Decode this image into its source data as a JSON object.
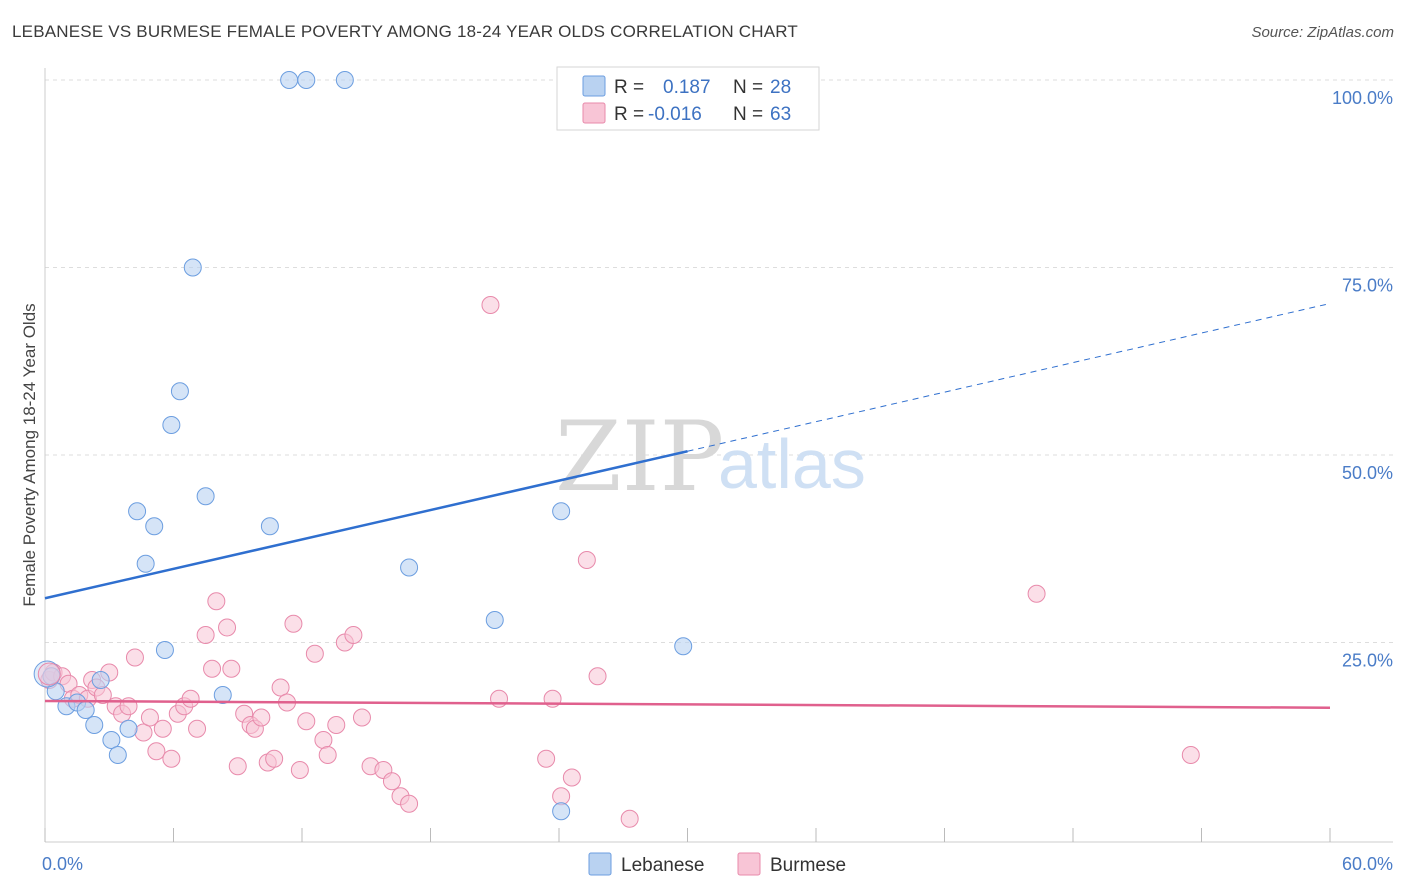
{
  "title": "LEBANESE VS BURMESE FEMALE POVERTY AMONG 18-24 YEAR OLDS CORRELATION CHART",
  "source": "Source: ZipAtlas.com",
  "watermark": {
    "zip": "ZIP",
    "atlas": "atlas"
  },
  "colors": {
    "lebanese_fill": "#b9d2f1",
    "lebanese_stroke": "#6c9ee0",
    "lebanese_line": "#2f6fcf",
    "burmese_fill": "#f8c5d6",
    "burmese_stroke": "#e88aab",
    "burmese_line": "#e0608d",
    "tick_text": "#4a7cc7",
    "grid": "#dddddd"
  },
  "legend": {
    "rows": [
      {
        "r_label": "R =",
        "r_value": "0.187",
        "n_label": "N =",
        "n_value": "28"
      },
      {
        "r_label": "R =",
        "r_value": "-0.016",
        "n_label": "N =",
        "n_value": "63"
      }
    ]
  },
  "bottom_legend": {
    "lebanese": "Lebanese",
    "burmese": "Burmese"
  },
  "chart_data": {
    "type": "scatter",
    "title": "LEBANESE VS BURMESE FEMALE POVERTY AMONG 18-24 YEAR OLDS CORRELATION CHART",
    "xlabel": "",
    "ylabel": "Female Poverty Among 18-24 Year Olds",
    "xlim": [
      0,
      60
    ],
    "ylim": [
      0,
      100
    ],
    "x_tick_labels": [
      "0.0%",
      "60.0%"
    ],
    "y_tick_labels": [
      "25.0%",
      "50.0%",
      "75.0%",
      "100.0%"
    ],
    "y_ticks": [
      25,
      50,
      75,
      100
    ],
    "grid": true,
    "legend_position": "top-center",
    "series": [
      {
        "name": "Lebanese",
        "r": 0.187,
        "n": 28,
        "trend": {
          "x": [
            0,
            30,
            60
          ],
          "y": [
            30.9,
            50.5,
            70.2
          ],
          "solid_until": 30
        },
        "points": [
          [
            0.3,
            20.5
          ],
          [
            0.5,
            18.5
          ],
          [
            1.0,
            16.5
          ],
          [
            1.5,
            17.0
          ],
          [
            1.9,
            16.0
          ],
          [
            2.3,
            14.0
          ],
          [
            2.6,
            20.0
          ],
          [
            3.1,
            12.0
          ],
          [
            3.4,
            10.0
          ],
          [
            3.9,
            13.5
          ],
          [
            4.3,
            42.5
          ],
          [
            4.7,
            35.5
          ],
          [
            5.1,
            40.5
          ],
          [
            5.6,
            24.0
          ],
          [
            5.9,
            54.0
          ],
          [
            6.3,
            58.5
          ],
          [
            6.9,
            75.0
          ],
          [
            7.5,
            44.5
          ],
          [
            8.3,
            18.0
          ],
          [
            10.5,
            40.5
          ],
          [
            11.4,
            100.0
          ],
          [
            12.2,
            100.0
          ],
          [
            14.0,
            100.0
          ],
          [
            17.0,
            35.0
          ],
          [
            21.0,
            28.0
          ],
          [
            24.1,
            42.5
          ],
          [
            24.1,
            2.5
          ],
          [
            29.8,
            24.5
          ]
        ]
      },
      {
        "name": "Burmese",
        "r": -0.016,
        "n": 63,
        "trend": {
          "x": [
            0,
            60
          ],
          "y": [
            17.2,
            16.3
          ]
        },
        "points": [
          [
            0.2,
            20.0
          ],
          [
            0.4,
            21.0
          ],
          [
            0.8,
            20.5
          ],
          [
            1.1,
            19.5
          ],
          [
            1.3,
            17.5
          ],
          [
            1.6,
            18.0
          ],
          [
            2.0,
            17.5
          ],
          [
            2.2,
            20.0
          ],
          [
            2.4,
            19.0
          ],
          [
            2.7,
            18.0
          ],
          [
            3.0,
            21.0
          ],
          [
            3.3,
            16.5
          ],
          [
            3.6,
            15.5
          ],
          [
            3.9,
            16.5
          ],
          [
            4.2,
            23.0
          ],
          [
            4.6,
            13.0
          ],
          [
            4.9,
            15.0
          ],
          [
            5.2,
            10.5
          ],
          [
            5.5,
            13.5
          ],
          [
            5.9,
            9.5
          ],
          [
            6.2,
            15.5
          ],
          [
            6.5,
            16.5
          ],
          [
            6.8,
            17.5
          ],
          [
            7.1,
            13.5
          ],
          [
            7.5,
            26.0
          ],
          [
            7.8,
            21.5
          ],
          [
            8.0,
            30.5
          ],
          [
            8.5,
            27.0
          ],
          [
            8.7,
            21.5
          ],
          [
            9.0,
            8.5
          ],
          [
            9.3,
            15.5
          ],
          [
            9.6,
            14.0
          ],
          [
            9.8,
            13.5
          ],
          [
            10.1,
            15.0
          ],
          [
            10.4,
            9.0
          ],
          [
            10.7,
            9.5
          ],
          [
            11.0,
            19.0
          ],
          [
            11.3,
            17.0
          ],
          [
            11.6,
            27.5
          ],
          [
            11.9,
            8.0
          ],
          [
            12.2,
            14.5
          ],
          [
            12.6,
            23.5
          ],
          [
            13.0,
            12.0
          ],
          [
            13.2,
            10.0
          ],
          [
            13.6,
            14.0
          ],
          [
            14.0,
            25.0
          ],
          [
            14.4,
            26.0
          ],
          [
            14.8,
            15.0
          ],
          [
            15.2,
            8.5
          ],
          [
            15.8,
            8.0
          ],
          [
            16.2,
            6.5
          ],
          [
            16.6,
            4.5
          ],
          [
            17.0,
            3.5
          ],
          [
            20.8,
            70.0
          ],
          [
            21.2,
            17.5
          ],
          [
            23.4,
            9.5
          ],
          [
            23.7,
            17.5
          ],
          [
            24.1,
            4.5
          ],
          [
            24.6,
            7.0
          ],
          [
            25.3,
            36.0
          ],
          [
            25.8,
            20.5
          ],
          [
            27.3,
            1.5
          ],
          [
            46.3,
            31.5
          ],
          [
            53.5,
            10.0
          ]
        ]
      }
    ]
  }
}
